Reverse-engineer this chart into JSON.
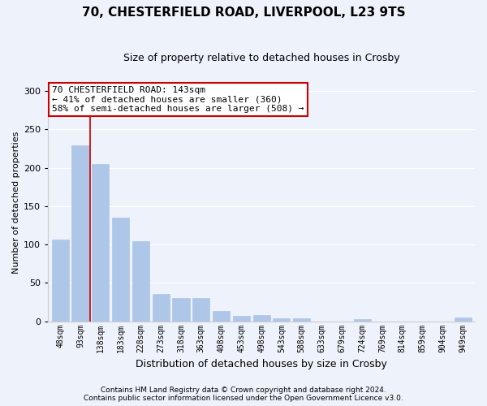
{
  "title1": "70, CHESTERFIELD ROAD, LIVERPOOL, L23 9TS",
  "title2": "Size of property relative to detached houses in Crosby",
  "xlabel": "Distribution of detached houses by size in Crosby",
  "ylabel": "Number of detached properties",
  "categories": [
    "48sqm",
    "93sqm",
    "138sqm",
    "183sqm",
    "228sqm",
    "273sqm",
    "318sqm",
    "363sqm",
    "408sqm",
    "453sqm",
    "498sqm",
    "543sqm",
    "588sqm",
    "633sqm",
    "679sqm",
    "724sqm",
    "769sqm",
    "814sqm",
    "859sqm",
    "904sqm",
    "949sqm"
  ],
  "values": [
    107,
    229,
    205,
    135,
    104,
    36,
    30,
    30,
    13,
    7,
    8,
    4,
    4,
    0,
    0,
    3,
    0,
    0,
    0,
    0,
    5
  ],
  "bar_color": "#aec6e8",
  "bar_edge_color": "#aec6e8",
  "background_color": "#eef2fb",
  "grid_color": "#ffffff",
  "annotation_box_color": "#ffffff",
  "annotation_border_color": "#cc0000",
  "property_line_color": "#cc0000",
  "property_line_x": 1.5,
  "annotation_line1": "70 CHESTERFIELD ROAD: 143sqm",
  "annotation_line2": "← 41% of detached houses are smaller (360)",
  "annotation_line3": "58% of semi-detached houses are larger (508) →",
  "footer1": "Contains HM Land Registry data © Crown copyright and database right 2024.",
  "footer2": "Contains public sector information licensed under the Open Government Licence v3.0.",
  "ylim": [
    0,
    310
  ],
  "yticks": [
    0,
    50,
    100,
    150,
    200,
    250,
    300
  ],
  "title1_fontsize": 11,
  "title2_fontsize": 9,
  "ylabel_fontsize": 8,
  "xlabel_fontsize": 9,
  "tick_fontsize": 8,
  "xtick_fontsize": 7,
  "footer_fontsize": 6.5,
  "annotation_fontsize": 8
}
